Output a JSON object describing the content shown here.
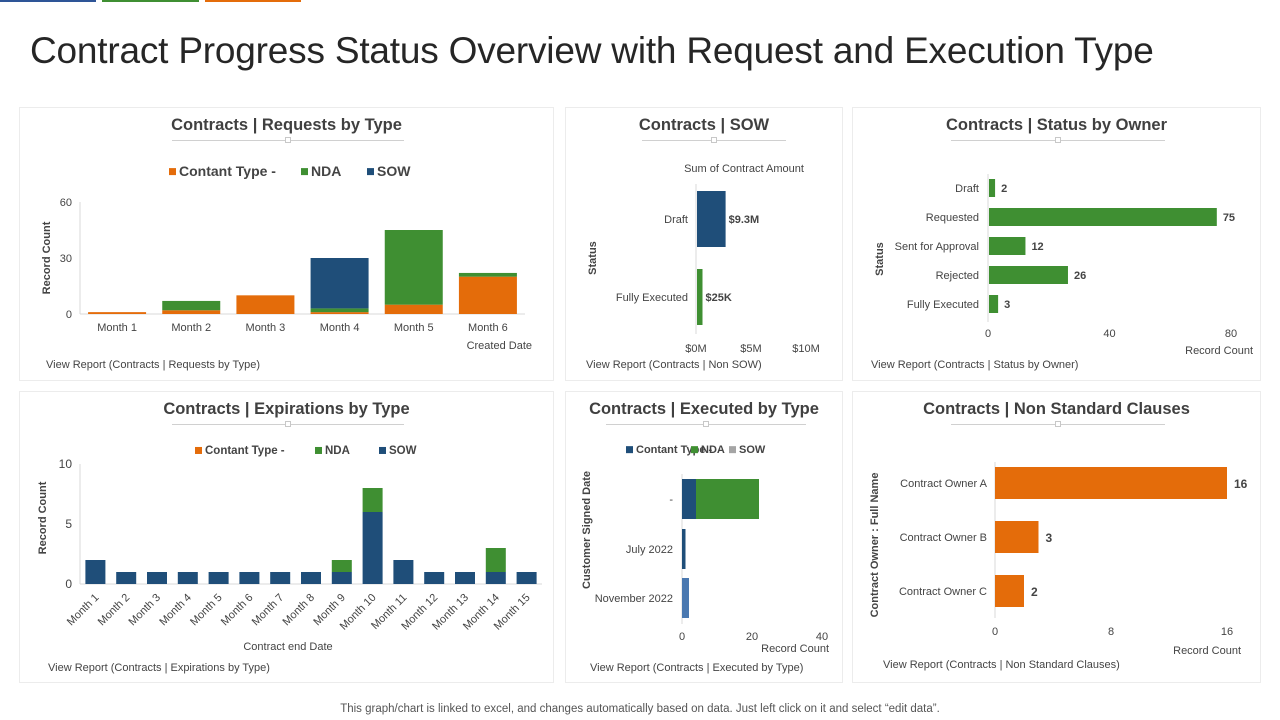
{
  "colors": {
    "blue": "#1f4e79",
    "green": "#3f8f32",
    "orange": "#e46c0a",
    "gray": "#a5a5a5",
    "steel": "#4a78b0"
  },
  "page": {
    "title": "Contract Progress Status Overview with Request and Execution Type",
    "footnote": "This graph/chart is linked to excel, and changes automatically based on data. Just left click on it and select “edit data”."
  },
  "chart_data": [
    {
      "id": "requests",
      "type": "bar",
      "stacked": true,
      "title": "Contracts  |  Requests  by Type",
      "link": "View Report (Contracts | Requests by Type)",
      "categories": [
        "Month 1",
        "Month 2",
        "Month 3",
        "Month 4",
        "Month 5",
        "Month 6"
      ],
      "series": [
        {
          "name": "Contant Type -",
          "color": "orange",
          "values": [
            1,
            2,
            10,
            1,
            5,
            20
          ]
        },
        {
          "name": "NDA",
          "color": "green",
          "values": [
            0,
            5,
            0,
            2,
            40,
            2
          ]
        },
        {
          "name": "SOW",
          "color": "blue",
          "values": [
            0,
            0,
            0,
            27,
            0,
            0
          ]
        }
      ],
      "ylabel": "Record Count",
      "xlabel": "Created Date",
      "yticks": [
        0,
        30,
        60
      ],
      "ylim": [
        0,
        60
      ]
    },
    {
      "id": "sow",
      "type": "bar",
      "orientation": "horizontal",
      "title": "Contracts  | SOW",
      "link": "View Report (Contracts | Non  SOW)",
      "categories": [
        "Draft",
        "Fully Executed"
      ],
      "values": [
        9.3,
        0.025
      ],
      "display_values": [
        2.6,
        0.5
      ],
      "colors": [
        "blue",
        "green"
      ],
      "data_labels": [
        "$9.3M",
        "$25K"
      ],
      "header": "Sum of Contract Amount",
      "ylabel": "Status",
      "xticks": [
        "$0M",
        "$5M",
        "$10M"
      ],
      "xlim": [
        0,
        10
      ]
    },
    {
      "id": "status",
      "type": "bar",
      "orientation": "horizontal",
      "title": "Contracts  | Status  by Owner",
      "link": "View Report (Contracts | Status by Owner)",
      "categories": [
        "Draft",
        "Requested",
        "Sent for Approval",
        "Rejected",
        "Fully Executed"
      ],
      "values": [
        2,
        75,
        12,
        26,
        3
      ],
      "color": "green",
      "ylabel": "Status",
      "xlabel": "Record Count",
      "xticks": [
        0,
        40,
        80
      ],
      "xlim": [
        0,
        80
      ]
    },
    {
      "id": "expirations",
      "type": "bar",
      "stacked": true,
      "title": "Contracts  |  Expirations  by Type",
      "link": "View Report (Contracts | Expirations by Type)",
      "categories": [
        "Month 1",
        "Month 2",
        "Month 3",
        "Month 4",
        "Month 5",
        "Month 6",
        "Month 7",
        "Month 8",
        "Month 9",
        "Month 10",
        "Month 11",
        "Month 12",
        "Month 13",
        "Month 14",
        "Month 15"
      ],
      "series": [
        {
          "name": "Contant Type -",
          "color": "orange",
          "values": [
            0,
            0,
            0,
            0,
            0,
            0,
            0,
            0,
            0,
            0,
            0,
            0,
            0,
            0,
            0
          ]
        },
        {
          "name": "NDA",
          "color": "green",
          "values": [
            0,
            0,
            0,
            0,
            0,
            0,
            0,
            0,
            1,
            2,
            0,
            0,
            0,
            2,
            0
          ]
        },
        {
          "name": "SOW",
          "color": "blue",
          "values": [
            2,
            1,
            1,
            1,
            1,
            1,
            1,
            1,
            1,
            6,
            2,
            1,
            1,
            1,
            1
          ]
        }
      ],
      "ylabel": "Record Count",
      "xlabel": "Contract end Date",
      "yticks": [
        0,
        5,
        10
      ],
      "ylim": [
        0,
        10
      ]
    },
    {
      "id": "executed",
      "type": "bar",
      "orientation": "horizontal",
      "stacked": true,
      "title": "Contracts  |  Executed  by Type",
      "link": "View Report (Contracts | Executed by Type)",
      "categories": [
        "-",
        "July 2022",
        "November 2022"
      ],
      "series": [
        {
          "name": "Contant Type -",
          "color": "blue",
          "values": [
            4,
            1,
            0
          ]
        },
        {
          "name": "NDA",
          "color": "green",
          "values": [
            18,
            0,
            0
          ]
        },
        {
          "name": "SOW",
          "color": "gray",
          "values": [
            0,
            0,
            0
          ]
        }
      ],
      "extra": [
        {
          "category": "November 2022",
          "color": "steel",
          "value": 2
        }
      ],
      "ylabel": "Customer Signed Date",
      "xlabel": "Record Count",
      "xticks": [
        0,
        20,
        40
      ],
      "xlim": [
        0,
        40
      ]
    },
    {
      "id": "clauses",
      "type": "bar",
      "orientation": "horizontal",
      "title": "Contracts  | Non Standard Clauses",
      "link": "View Report (Contracts | Non Standard Clauses)",
      "categories": [
        "Contract Owner A",
        "Contract Owner B",
        "Contract Owner C"
      ],
      "values": [
        16,
        3,
        2
      ],
      "color": "orange",
      "ylabel": "Contract Owner : Full Name",
      "xlabel": "Record Count",
      "xticks": [
        0,
        8,
        16
      ],
      "xlim": [
        0,
        16
      ]
    }
  ]
}
